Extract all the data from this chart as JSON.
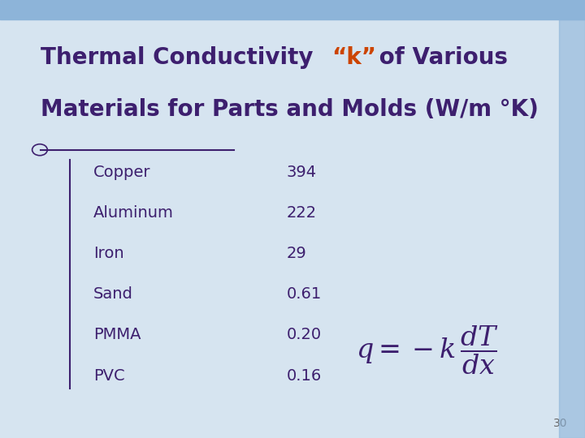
{
  "title_part1": "Thermal Conductivity “k” of Various",
  "title_part2": "Materials for Parts and Molds (W/m °K)",
  "title_color_main": "#3d1f6e",
  "title_color_k": "#cc4400",
  "bg_color": "#d6e4f0",
  "table_color": "#3d1f6e",
  "materials": [
    "Copper",
    "Aluminum",
    "Iron",
    "Sand",
    "PMMA",
    "PVC"
  ],
  "values": [
    "394",
    "222",
    "29",
    "0.61",
    "0.20",
    "0.16"
  ],
  "page_number": "30",
  "top_bar_color": "#8db4d9",
  "right_bar_color": "#8db4d9",
  "line_color": "#3d1f6e"
}
